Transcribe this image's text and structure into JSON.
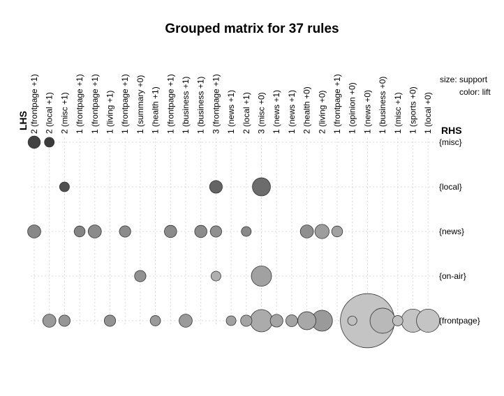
{
  "chart_data": {
    "type": "scatter",
    "title": "Grouped matrix for 37 rules",
    "lhs_label": "LHS",
    "rhs_label": "RHS",
    "legend": {
      "size": "size: support",
      "color": "color: lift"
    },
    "lhs_groups": [
      "2 (frontpage +1)",
      "2 (local +1)",
      "2 (misc +1)",
      "1 (frontpage +1)",
      "1 (frontpage +1)",
      "1 (living +1)",
      "1 (frontpage +1)",
      "1 (summary +0)",
      "1 (health +1)",
      "1 (frontpage +1)",
      "1 (business +1)",
      "1 (business +1)",
      "3 (frontpage +1)",
      "1 (news +1)",
      "2 (local +1)",
      "3 (misc +0)",
      "1 (news +1)",
      "1 (news +1)",
      "2 (health +0)",
      "2 (living +0)",
      "1 (frontpage +1)",
      "1 (opinion +0)",
      "1 (news +0)",
      "1 (business +0)",
      "1 (misc +1)",
      "1 (sports +0)",
      "1 (local +0)"
    ],
    "rhs_items": [
      "{misc}",
      "{local}",
      "{news}",
      "{on-air}",
      "{frontpage}"
    ],
    "points": [
      {
        "lhs": 0,
        "rhs": 0,
        "support": 0.012,
        "lift": 5.0
      },
      {
        "lhs": 1,
        "rhs": 0,
        "support": 0.007,
        "lift": 5.2
      },
      {
        "lhs": 2,
        "rhs": 1,
        "support": 0.007,
        "lift": 4.6
      },
      {
        "lhs": 12,
        "rhs": 1,
        "support": 0.013,
        "lift": 4.0
      },
      {
        "lhs": 15,
        "rhs": 1,
        "support": 0.029,
        "lift": 3.8
      },
      {
        "lhs": 0,
        "rhs": 2,
        "support": 0.014,
        "lift": 3.0
      },
      {
        "lhs": 3,
        "rhs": 2,
        "support": 0.009,
        "lift": 3.1
      },
      {
        "lhs": 4,
        "rhs": 2,
        "support": 0.014,
        "lift": 2.9
      },
      {
        "lhs": 6,
        "rhs": 2,
        "support": 0.01,
        "lift": 2.9
      },
      {
        "lhs": 9,
        "rhs": 2,
        "support": 0.012,
        "lift": 2.9
      },
      {
        "lhs": 11,
        "rhs": 2,
        "support": 0.012,
        "lift": 2.9
      },
      {
        "lhs": 12,
        "rhs": 2,
        "support": 0.01,
        "lift": 2.8
      },
      {
        "lhs": 14,
        "rhs": 2,
        "support": 0.007,
        "lift": 3.0
      },
      {
        "lhs": 18,
        "rhs": 2,
        "support": 0.014,
        "lift": 2.8
      },
      {
        "lhs": 19,
        "rhs": 2,
        "support": 0.017,
        "lift": 2.4
      },
      {
        "lhs": 20,
        "rhs": 2,
        "support": 0.009,
        "lift": 2.3
      },
      {
        "lhs": 7,
        "rhs": 3,
        "support": 0.01,
        "lift": 2.7
      },
      {
        "lhs": 12,
        "rhs": 3,
        "support": 0.007,
        "lift": 1.9
      },
      {
        "lhs": 15,
        "rhs": 3,
        "support": 0.037,
        "lift": 2.3
      },
      {
        "lhs": 1,
        "rhs": 4,
        "support": 0.014,
        "lift": 2.5
      },
      {
        "lhs": 2,
        "rhs": 4,
        "support": 0.01,
        "lift": 2.6
      },
      {
        "lhs": 5,
        "rhs": 4,
        "support": 0.01,
        "lift": 2.7
      },
      {
        "lhs": 8,
        "rhs": 4,
        "support": 0.008,
        "lift": 2.5
      },
      {
        "lhs": 10,
        "rhs": 4,
        "support": 0.014,
        "lift": 2.5
      },
      {
        "lhs": 13,
        "rhs": 4,
        "support": 0.007,
        "lift": 2.3
      },
      {
        "lhs": 14,
        "rhs": 4,
        "support": 0.01,
        "lift": 2.2
      },
      {
        "lhs": 15,
        "rhs": 4,
        "support": 0.046,
        "lift": 2.0
      },
      {
        "lhs": 16,
        "rhs": 4,
        "support": 0.013,
        "lift": 2.2
      },
      {
        "lhs": 17,
        "rhs": 4,
        "support": 0.011,
        "lift": 2.2
      },
      {
        "lhs": 18,
        "rhs": 4,
        "support": 0.029,
        "lift": 2.1
      },
      {
        "lhs": 19,
        "rhs": 4,
        "support": 0.04,
        "lift": 2.5
      },
      {
        "lhs": 21,
        "rhs": 4,
        "support": 0.006,
        "lift": 1.4
      },
      {
        "lhs": 22,
        "rhs": 4,
        "support": 0.3,
        "lift": 1.3
      },
      {
        "lhs": 23,
        "rhs": 4,
        "support": 0.06,
        "lift": 1.6
      },
      {
        "lhs": 24,
        "rhs": 4,
        "support": 0.008,
        "lift": 1.4
      },
      {
        "lhs": 25,
        "rhs": 4,
        "support": 0.05,
        "lift": 1.3
      },
      {
        "lhs": 26,
        "rhs": 4,
        "support": 0.05,
        "lift": 1.3
      }
    ],
    "color_range": [
      "#c4c4c4",
      "#3a3a3a"
    ],
    "grid": true
  }
}
